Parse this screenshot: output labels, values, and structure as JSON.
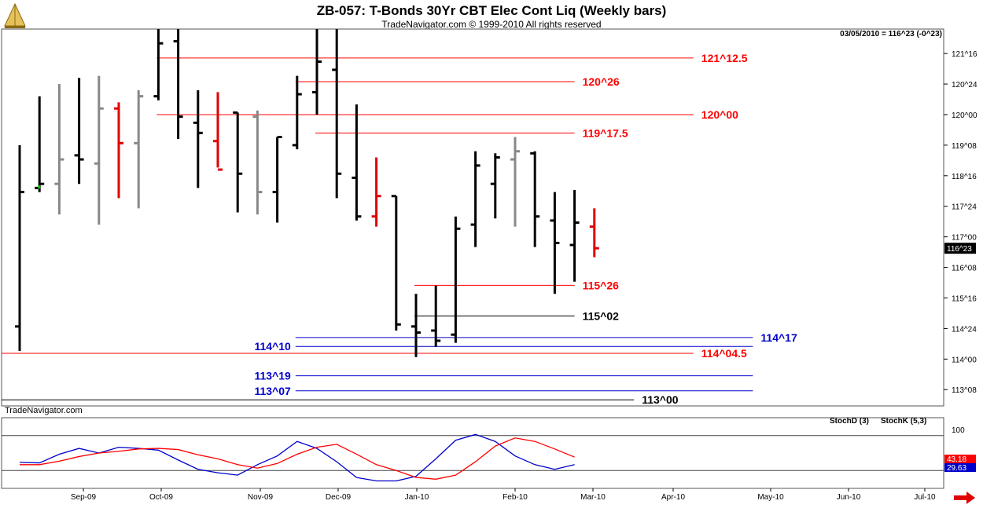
{
  "header": {
    "title": "ZB-057:  T-Bonds 30Yr CBT Elec Cont Liq  (Weekly bars)",
    "subtitle": "TradeNavigator.com © 1999-2010 All rights reserved",
    "quote": "03/05/2010 = 116^23 (-0^23)",
    "credit": "TradeNavigator.com"
  },
  "stoch": {
    "d_label": "StochD (3)",
    "k_label": "StochK (5,3)",
    "tick_100": "100",
    "d_value": "43.18",
    "k_value": "29.63",
    "d_color": "#ff0000",
    "k_color": "#0000cc"
  },
  "chart_data": {
    "type": "ohlc_bar",
    "price_unit": "32nds",
    "x_labels": [
      "Sep-09",
      "Oct-09",
      "Nov-09",
      "Dec-09",
      "Jan-10",
      "Feb-10",
      "Mar-10",
      "Apr-10",
      "May-10",
      "Jun-10",
      "Jul-10"
    ],
    "y_ticks": [
      "121^16",
      "120^24",
      "120^00",
      "119^08",
      "118^16",
      "117^24",
      "117^00",
      "116^08",
      "115^16",
      "114^24",
      "114^00",
      "113^08"
    ],
    "last_price_label": "116^23",
    "bar_colors": {
      "black": "#000000",
      "gray": "#888888",
      "red": "#e00000"
    },
    "bars": [
      {
        "week": 1,
        "o": 114.8,
        "h": 119.25,
        "l": 114.2,
        "c": 118.1,
        "color": "black"
      },
      {
        "week": 2,
        "o": 118.2,
        "h": 120.45,
        "l": 118.1,
        "c": 118.3,
        "color": "black",
        "low_tick_color": "#00cc00"
      },
      {
        "week": 3,
        "o": 118.3,
        "h": 120.75,
        "l": 117.55,
        "c": 118.9,
        "color": "gray"
      },
      {
        "week": 4,
        "o": 119.0,
        "h": 120.9,
        "l": 118.3,
        "c": 118.9,
        "color": "black"
      },
      {
        "week": 5,
        "o": 118.8,
        "h": 120.95,
        "l": 117.3,
        "c": 120.15,
        "color": "gray"
      },
      {
        "week": 6,
        "o": 120.15,
        "h": 120.3,
        "l": 117.95,
        "c": 119.3,
        "color": "red"
      },
      {
        "week": 7,
        "o": 119.3,
        "h": 120.6,
        "l": 117.7,
        "c": 120.45,
        "color": "gray"
      },
      {
        "week": 8,
        "o": 120.45,
        "h": 122.1,
        "l": 120.35,
        "c": 121.75,
        "color": "black"
      },
      {
        "week": 9,
        "o": 121.8,
        "h": 122.1,
        "l": 119.4,
        "c": 119.95,
        "color": "black"
      },
      {
        "week": 10,
        "o": 119.8,
        "h": 120.6,
        "l": 118.2,
        "c": 119.55,
        "color": "black"
      },
      {
        "week": 11,
        "o": 119.35,
        "h": 120.55,
        "l": 118.7,
        "c": 118.65,
        "color": "red"
      },
      {
        "week": 12,
        "o": 120.05,
        "h": 120.05,
        "l": 117.6,
        "c": 118.55,
        "color": "black"
      },
      {
        "week": 13,
        "o": 119.95,
        "h": 120.1,
        "l": 117.55,
        "c": 118.1,
        "color": "gray"
      },
      {
        "week": 14,
        "o": 118.1,
        "h": 119.45,
        "l": 117.35,
        "c": 119.45,
        "color": "black"
      },
      {
        "week": 15,
        "o": 119.25,
        "h": 120.95,
        "l": 119.15,
        "c": 120.5,
        "color": "black"
      },
      {
        "week": 16,
        "o": 120.55,
        "h": 122.1,
        "l": 120.0,
        "c": 121.3,
        "color": "black"
      },
      {
        "week": 17,
        "o": 121.1,
        "h": 122.1,
        "l": 117.95,
        "c": 118.55,
        "color": "black"
      },
      {
        "week": 18,
        "o": 118.45,
        "h": 120.25,
        "l": 117.4,
        "c": 117.5,
        "color": "black"
      },
      {
        "week": 19,
        "o": 117.5,
        "h": 118.95,
        "l": 117.25,
        "c": 118.0,
        "color": "red"
      },
      {
        "week": 20,
        "o": 118.0,
        "h": 118.0,
        "l": 114.7,
        "c": 114.85,
        "color": "black"
      },
      {
        "week": 21,
        "o": 114.8,
        "h": 115.6,
        "l": 114.05,
        "c": 114.65,
        "color": "black"
      },
      {
        "week": 22,
        "o": 114.7,
        "h": 115.8,
        "l": 114.3,
        "c": 114.45,
        "color": "black"
      },
      {
        "week": 23,
        "o": 114.6,
        "h": 117.5,
        "l": 114.4,
        "c": 117.2,
        "color": "black"
      },
      {
        "week": 24,
        "o": 117.3,
        "h": 119.1,
        "l": 116.75,
        "c": 118.75,
        "color": "black"
      },
      {
        "week": 25,
        "o": 118.3,
        "h": 119.05,
        "l": 117.45,
        "c": 118.95,
        "color": "black"
      },
      {
        "week": 26,
        "o": 118.9,
        "h": 119.45,
        "l": 117.25,
        "c": 119.1,
        "color": "gray"
      },
      {
        "week": 27,
        "o": 119.05,
        "h": 119.1,
        "l": 116.75,
        "c": 117.5,
        "color": "black"
      },
      {
        "week": 28,
        "o": 117.4,
        "h": 118.1,
        "l": 115.6,
        "c": 116.85,
        "color": "black"
      },
      {
        "week": 29,
        "o": 116.8,
        "h": 118.15,
        "l": 115.9,
        "c": 117.35,
        "color": "black"
      },
      {
        "week": 30,
        "o": 117.25,
        "h": 117.7,
        "l": 116.5,
        "c": 116.72,
        "color": "red"
      }
    ],
    "levels": [
      {
        "label": "121^12.5",
        "price": 121.39,
        "color": "#ff0000",
        "x_from_week": 8,
        "x_to_week": 35,
        "label_side": "right",
        "label_color": "#ff0000"
      },
      {
        "label": "120^26",
        "price": 120.81,
        "color": "#ff0000",
        "x_from_week": 15,
        "x_to_week": 29,
        "label_side": "right",
        "label_color": "#ff0000"
      },
      {
        "label": "120^00",
        "price": 120.0,
        "color": "#ff0000",
        "x_from_week": 8,
        "x_to_week": 35,
        "label_side": "right",
        "label_color": "#ff0000"
      },
      {
        "label": "119^17.5",
        "price": 119.55,
        "color": "#ff0000",
        "x_from_week": 16,
        "x_to_week": 29,
        "label_side": "right",
        "label_color": "#ff0000"
      },
      {
        "label": "115^26",
        "price": 115.81,
        "color": "#ff0000",
        "x_from_week": 21,
        "x_to_week": 29,
        "label_side": "right",
        "label_color": "#ff0000"
      },
      {
        "label": "115^02",
        "price": 115.06,
        "color": "#000000",
        "x_from_week": 21,
        "x_to_week": 29,
        "label_side": "right",
        "label_color": "#000000"
      },
      {
        "label": "114^17",
        "price": 114.53,
        "color": "#0000cc",
        "x_from_week": 15,
        "x_to_week": 38,
        "label_side": "right",
        "label_color": "#0000cc"
      },
      {
        "label": "114^10",
        "price": 114.31,
        "color": "#0000cc",
        "x_from_week": 15,
        "x_to_week": 38,
        "label_side": "left",
        "label_color": "#0000cc"
      },
      {
        "label": "114^04.5",
        "price": 114.14,
        "color": "#ff0000",
        "x_from_week": 0,
        "x_to_week": 35,
        "label_side": "right",
        "label_color": "#ff0000"
      },
      {
        "label": "113^19",
        "price": 113.59,
        "color": "#0000cc",
        "x_from_week": 15,
        "x_to_week": 38,
        "label_side": "left",
        "label_color": "#0000cc"
      },
      {
        "label": "113^07",
        "price": 113.22,
        "color": "#0000cc",
        "x_from_week": 15,
        "x_to_week": 38,
        "label_side": "left",
        "label_color": "#0000cc"
      },
      {
        "label": "113^00",
        "price": 113.0,
        "color": "#000000",
        "x_from_week": 0,
        "x_to_week": 32,
        "label_side": "right",
        "label_color": "#000000"
      }
    ],
    "stochD": [
      30,
      30,
      36,
      44,
      50,
      53,
      57,
      58,
      56,
      47,
      40,
      30,
      24,
      32,
      48,
      60,
      65,
      48,
      30,
      20,
      8,
      5,
      12,
      35,
      62,
      76,
      70,
      57,
      43
    ],
    "stochK": [
      34,
      33,
      48,
      58,
      50,
      60,
      58,
      55,
      38,
      22,
      16,
      12,
      30,
      45,
      70,
      58,
      35,
      8,
      2,
      2,
      10,
      40,
      72,
      82,
      70,
      45,
      30,
      22,
      30
    ]
  }
}
